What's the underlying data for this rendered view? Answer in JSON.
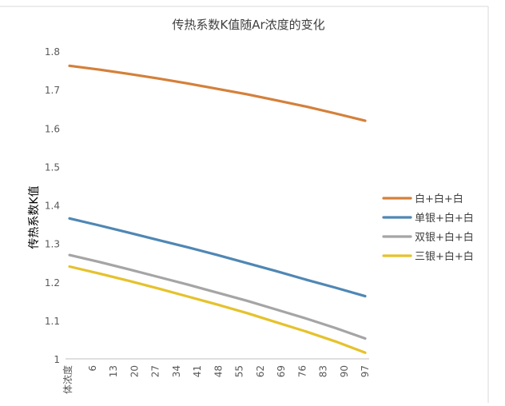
{
  "chart_data": {
    "type": "line",
    "title": "传热系数K值随Ar浓度的变化",
    "xlabel": "",
    "ylabel": "传热系数K值",
    "x_first_label": "体浓度",
    "x_ticks": [
      6,
      13,
      20,
      27,
      34,
      41,
      48,
      55,
      62,
      69,
      76,
      83,
      90,
      97
    ],
    "x": [
      0,
      10,
      20,
      30,
      40,
      50,
      60,
      70,
      80,
      90,
      100
    ],
    "ylim": [
      1,
      1.8
    ],
    "y_ticks": [
      1,
      1.1,
      1.2,
      1.3,
      1.4,
      1.5,
      1.6,
      1.7,
      1.8
    ],
    "grid": false,
    "legend_position": "right",
    "series": [
      {
        "name": "白+白+白",
        "color": "#d4803a",
        "values": [
          1.762,
          1.752,
          1.741,
          1.729,
          1.716,
          1.702,
          1.688,
          1.672,
          1.656,
          1.638,
          1.619
        ]
      },
      {
        "name": "单银+白+白",
        "color": "#4f87b4",
        "values": [
          1.365,
          1.347,
          1.328,
          1.309,
          1.29,
          1.27,
          1.249,
          1.228,
          1.206,
          1.185,
          1.163
        ]
      },
      {
        "name": "双银+白+白",
        "color": "#a5a5a5",
        "values": [
          1.27,
          1.252,
          1.233,
          1.213,
          1.193,
          1.172,
          1.151,
          1.128,
          1.105,
          1.08,
          1.053
        ]
      },
      {
        "name": "三银+白+白",
        "color": "#e5c22c",
        "values": [
          1.24,
          1.222,
          1.203,
          1.183,
          1.162,
          1.141,
          1.119,
          1.095,
          1.071,
          1.045,
          1.016
        ]
      }
    ]
  }
}
